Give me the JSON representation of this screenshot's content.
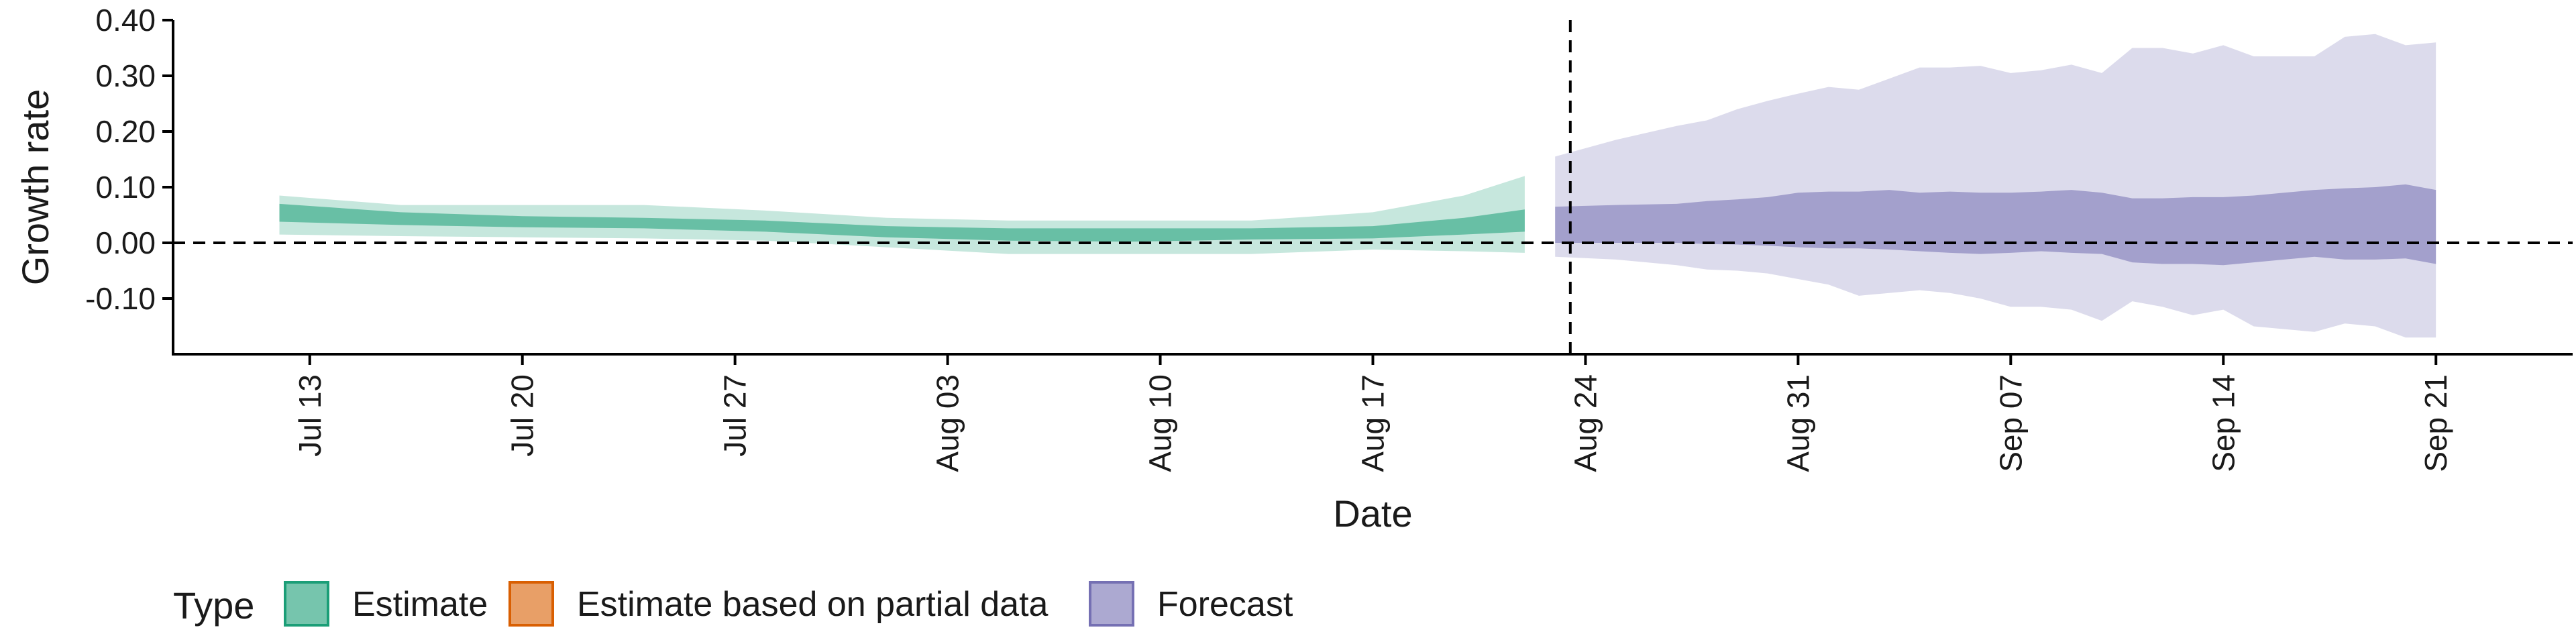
{
  "chart_data": {
    "type": "area",
    "xlabel": "Date",
    "ylabel": "Growth rate",
    "ylim": [
      -0.2,
      0.4
    ],
    "yticks": [
      -0.1,
      0.0,
      0.1,
      0.2,
      0.3,
      0.4
    ],
    "ytick_labels": [
      "-0.10",
      "0.00",
      "0.10",
      "0.20",
      "0.30",
      "0.40"
    ],
    "xtick_labels": [
      "Jul 13",
      "Jul 20",
      "Jul 27",
      "Aug 03",
      "Aug 10",
      "Aug 17",
      "Aug 24",
      "Aug 31",
      "Sep 07",
      "Sep 14",
      "Sep 21"
    ],
    "xtick_days": [
      2,
      9,
      16,
      23,
      30,
      37,
      44,
      51,
      58,
      65,
      72
    ],
    "xlim_days": [
      -2.5,
      76.5
    ],
    "forecast_start_day": 43,
    "hline_y": 0.0,
    "grid": false,
    "legend": {
      "title": "Type",
      "position": "bottom-left",
      "items": [
        {
          "label": "Estimate",
          "color": "#1b9e77"
        },
        {
          "label": "Estimate based on partial data",
          "color": "#d95f02"
        },
        {
          "label": "Forecast",
          "color": "#7570b3"
        }
      ]
    },
    "series": [
      {
        "name": "Estimate",
        "color": "#1b9e77",
        "x_days": [
          1,
          5,
          9,
          13,
          17,
          21,
          25,
          29,
          33,
          37,
          40,
          42
        ],
        "outer_upper": [
          0.085,
          0.068,
          0.068,
          0.068,
          0.058,
          0.045,
          0.04,
          0.04,
          0.04,
          0.055,
          0.085,
          0.12
        ],
        "inner_upper": [
          0.07,
          0.055,
          0.048,
          0.045,
          0.04,
          0.03,
          0.026,
          0.026,
          0.026,
          0.03,
          0.045,
          0.06
        ],
        "inner_lower": [
          0.038,
          0.032,
          0.028,
          0.026,
          0.02,
          0.01,
          0.004,
          0.002,
          0.006,
          0.008,
          0.015,
          0.02
        ],
        "outer_lower": [
          0.015,
          0.012,
          0.01,
          0.008,
          0.004,
          -0.008,
          -0.02,
          -0.02,
          -0.02,
          -0.012,
          -0.015,
          -0.018
        ]
      },
      {
        "name": "Forecast",
        "color": "#7570b3",
        "x_days": [
          43,
          45,
          47,
          48,
          49,
          50,
          51,
          52,
          53,
          54,
          55,
          56,
          57,
          58,
          59,
          60,
          61,
          62,
          63,
          64,
          65,
          66,
          67,
          68,
          69,
          70,
          71,
          72
        ],
        "outer_upper": [
          0.155,
          0.185,
          0.21,
          0.22,
          0.24,
          0.255,
          0.268,
          0.28,
          0.275,
          0.295,
          0.315,
          0.315,
          0.318,
          0.305,
          0.31,
          0.32,
          0.305,
          0.35,
          0.35,
          0.34,
          0.355,
          0.335,
          0.335,
          0.335,
          0.37,
          0.375,
          0.355,
          0.36
        ],
        "inner_upper": [
          0.065,
          0.068,
          0.07,
          0.075,
          0.078,
          0.082,
          0.09,
          0.092,
          0.092,
          0.095,
          0.09,
          0.092,
          0.09,
          0.09,
          0.092,
          0.095,
          0.09,
          0.08,
          0.08,
          0.082,
          0.082,
          0.085,
          0.09,
          0.095,
          0.098,
          0.1,
          0.105,
          0.095
        ],
        "inner_lower": [
          0.0,
          0.0,
          0.0,
          -0.002,
          -0.003,
          -0.005,
          -0.008,
          -0.01,
          -0.01,
          -0.012,
          -0.015,
          -0.018,
          -0.02,
          -0.018,
          -0.015,
          -0.018,
          -0.02,
          -0.035,
          -0.038,
          -0.038,
          -0.04,
          -0.035,
          -0.03,
          -0.025,
          -0.03,
          -0.03,
          -0.028,
          -0.038
        ],
        "outer_lower": [
          -0.025,
          -0.03,
          -0.04,
          -0.048,
          -0.05,
          -0.055,
          -0.065,
          -0.075,
          -0.095,
          -0.09,
          -0.085,
          -0.09,
          -0.1,
          -0.115,
          -0.115,
          -0.12,
          -0.14,
          -0.105,
          -0.115,
          -0.13,
          -0.12,
          -0.15,
          -0.155,
          -0.16,
          -0.145,
          -0.15,
          -0.17,
          -0.17
        ]
      }
    ]
  }
}
